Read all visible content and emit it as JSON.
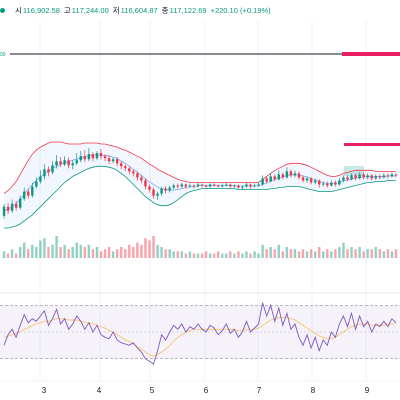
{
  "header": {
    "open_label": "시",
    "open": "116,902.58",
    "high_label": "고",
    "high": "117,244.00",
    "low_label": "저",
    "low": "116,604.87",
    "close_label": "종",
    "close": "117,122.69",
    "change": "+220.10 (+0.19%)"
  },
  "colors": {
    "up": "#089981",
    "down": "#f23645",
    "bb_upper": "#f23645",
    "bb_lower": "#089981",
    "bb_fill": "#2962ff",
    "rsi_line": "#7e57c2",
    "rsi_ma": "#f5c56b",
    "rsi_band": "#7e57c2",
    "alert_line": "#131722",
    "zone": "#e91e63"
  },
  "chart_data": {
    "type": "candlestick",
    "x_ticks": [
      "3",
      "4",
      "5",
      "6",
      "7",
      "8",
      "9"
    ],
    "price_tag": "00",
    "candles": [
      [
        -0.3,
        0.6,
        0.9,
        -0.6
      ],
      [
        0.6,
        0.2,
        1.0,
        -0.1
      ],
      [
        0.2,
        0.9,
        1.3,
        0.0
      ],
      [
        0.9,
        0.5,
        1.2,
        0.2
      ],
      [
        0.5,
        1.4,
        1.7,
        0.3
      ],
      [
        1.4,
        2.1,
        2.5,
        1.2
      ],
      [
        2.1,
        1.7,
        2.4,
        1.4
      ],
      [
        1.7,
        2.6,
        3.0,
        1.5
      ],
      [
        2.6,
        3.1,
        3.5,
        2.4
      ],
      [
        3.1,
        3.6,
        4.2,
        2.9
      ],
      [
        3.6,
        4.3,
        4.8,
        3.3
      ],
      [
        4.3,
        4.0,
        4.6,
        3.6
      ],
      [
        4.0,
        4.7,
        5.1,
        3.8
      ],
      [
        4.7,
        5.1,
        5.7,
        4.4
      ],
      [
        5.1,
        4.8,
        5.5,
        4.5
      ],
      [
        4.8,
        5.2,
        5.6,
        4.6
      ],
      [
        5.2,
        4.7,
        5.5,
        4.4
      ],
      [
        4.7,
        4.9,
        5.2,
        4.3
      ],
      [
        4.9,
        5.2,
        5.9,
        4.7
      ],
      [
        5.2,
        5.6,
        6.1,
        5.0
      ],
      [
        5.6,
        5.3,
        6.2,
        5.0
      ],
      [
        5.3,
        5.8,
        6.4,
        5.1
      ],
      [
        5.8,
        5.4,
        6.0,
        5.1
      ],
      [
        5.4,
        5.9,
        6.1,
        5.2
      ],
      [
        5.9,
        5.6,
        6.3,
        5.3
      ],
      [
        5.6,
        5.4,
        5.8,
        5.1
      ],
      [
        5.4,
        5.1,
        5.7,
        4.8
      ],
      [
        5.1,
        5.3,
        5.5,
        4.9
      ],
      [
        5.3,
        4.9,
        5.5,
        4.6
      ],
      [
        4.9,
        4.6,
        5.1,
        4.3
      ],
      [
        4.6,
        4.4,
        4.8,
        4.1
      ],
      [
        4.4,
        4.1,
        4.6,
        3.8
      ],
      [
        4.1,
        3.9,
        4.3,
        3.6
      ],
      [
        3.9,
        3.5,
        4.1,
        3.2
      ],
      [
        3.5,
        3.2,
        3.7,
        2.9
      ],
      [
        3.2,
        2.6,
        3.4,
        2.3
      ],
      [
        2.6,
        2.3,
        2.8,
        2.0
      ],
      [
        2.3,
        1.7,
        2.5,
        1.4
      ],
      [
        1.7,
        1.9,
        2.1,
        1.3
      ],
      [
        1.9,
        2.4,
        2.6,
        1.7
      ],
      [
        2.4,
        2.2,
        2.6,
        1.9
      ],
      [
        2.2,
        2.5,
        2.7,
        2.0
      ],
      [
        2.5,
        2.7,
        2.9,
        2.3
      ],
      [
        2.7,
        2.6,
        2.9,
        2.4
      ],
      [
        2.6,
        2.8,
        3.0,
        2.5
      ],
      [
        2.8,
        2.6,
        2.9,
        2.4
      ],
      [
        2.6,
        2.7,
        2.9,
        2.5
      ],
      [
        2.7,
        2.6,
        2.8,
        2.4
      ],
      [
        2.6,
        2.8,
        3.0,
        2.5
      ],
      [
        2.8,
        2.7,
        2.9,
        2.5
      ],
      [
        2.7,
        2.6,
        2.8,
        2.5
      ],
      [
        2.6,
        2.8,
        2.9,
        2.5
      ],
      [
        2.8,
        2.7,
        2.9,
        2.6
      ],
      [
        2.7,
        2.6,
        2.8,
        2.5
      ],
      [
        2.6,
        2.7,
        2.9,
        2.5
      ],
      [
        2.7,
        2.8,
        3.0,
        2.6
      ],
      [
        2.8,
        2.6,
        2.9,
        2.5
      ],
      [
        2.6,
        2.7,
        2.8,
        2.5
      ],
      [
        2.7,
        2.5,
        2.8,
        2.4
      ],
      [
        2.5,
        2.6,
        2.7,
        2.3
      ],
      [
        2.6,
        2.8,
        3.0,
        2.5
      ],
      [
        2.8,
        2.6,
        2.9,
        2.4
      ],
      [
        2.6,
        2.7,
        2.9,
        2.5
      ],
      [
        2.7,
        2.8,
        3.0,
        2.6
      ],
      [
        2.8,
        3.4,
        3.7,
        2.7
      ],
      [
        3.4,
        3.1,
        3.6,
        2.9
      ],
      [
        3.1,
        3.6,
        3.9,
        3.0
      ],
      [
        3.6,
        3.3,
        3.8,
        3.1
      ],
      [
        3.3,
        3.8,
        4.2,
        3.2
      ],
      [
        3.8,
        3.5,
        4.0,
        3.3
      ],
      [
        3.5,
        4.1,
        4.5,
        3.4
      ],
      [
        4.1,
        3.7,
        4.3,
        3.5
      ],
      [
        3.7,
        3.9,
        4.2,
        3.5
      ],
      [
        3.9,
        3.5,
        4.1,
        3.3
      ],
      [
        3.5,
        3.2,
        3.7,
        3.0
      ],
      [
        3.2,
        3.4,
        3.6,
        3.0
      ],
      [
        3.4,
        3.0,
        3.5,
        2.8
      ],
      [
        3.0,
        3.2,
        3.4,
        2.8
      ],
      [
        3.2,
        2.8,
        3.3,
        2.5
      ],
      [
        2.8,
        2.9,
        3.1,
        2.6
      ],
      [
        2.9,
        2.7,
        3.1,
        2.5
      ],
      [
        2.7,
        3.0,
        3.2,
        2.6
      ],
      [
        3.0,
        2.8,
        3.2,
        2.6
      ],
      [
        2.8,
        3.2,
        3.4,
        2.7
      ],
      [
        3.2,
        3.5,
        3.7,
        3.0
      ],
      [
        3.5,
        3.3,
        3.7,
        3.1
      ],
      [
        3.3,
        3.7,
        3.9,
        3.2
      ],
      [
        3.7,
        3.4,
        3.9,
        3.2
      ],
      [
        3.4,
        3.8,
        4.0,
        3.3
      ],
      [
        3.8,
        3.5,
        4.0,
        3.3
      ],
      [
        3.5,
        3.7,
        3.9,
        3.3
      ],
      [
        3.7,
        3.4,
        3.8,
        3.2
      ],
      [
        3.4,
        3.6,
        3.8,
        3.3
      ],
      [
        3.6,
        3.5,
        3.8,
        3.3
      ],
      [
        3.5,
        3.7,
        3.9,
        3.4
      ],
      [
        3.7,
        3.6,
        3.9,
        3.4
      ],
      [
        3.6,
        3.8,
        4.0,
        3.5
      ],
      [
        3.8,
        3.7,
        3.9,
        3.5
      ]
    ],
    "bb_upper": [
      1.9,
      2.2,
      2.6,
      3.1,
      3.8,
      4.5,
      5.2,
      5.8,
      6.2,
      6.5,
      6.7,
      6.9,
      7.0,
      7.0,
      7.0,
      6.9,
      6.8,
      6.8,
      6.8,
      6.8,
      6.9,
      6.9,
      6.9,
      6.9,
      6.8,
      6.8,
      6.7,
      6.6,
      6.5,
      6.3,
      6.2,
      6.0,
      5.8,
      5.6,
      5.4,
      5.1,
      4.8,
      4.6,
      4.3,
      4.1,
      3.9,
      3.7,
      3.5,
      3.3,
      3.2,
      3.1,
      3.0,
      3.0,
      3.0,
      3.0,
      3.0,
      3.0,
      3.0,
      3.0,
      3.0,
      3.0,
      3.0,
      3.0,
      3.0,
      3.0,
      3.0,
      3.0,
      3.0,
      3.0,
      3.3,
      3.6,
      3.9,
      4.2,
      4.4,
      4.6,
      4.8,
      4.9,
      4.9,
      4.9,
      4.8,
      4.7,
      4.5,
      4.3,
      4.1,
      3.9,
      3.7,
      3.6,
      3.6,
      3.7,
      3.9,
      4.0,
      4.1,
      4.2,
      4.2,
      4.2,
      4.2,
      4.2,
      4.1,
      4.1,
      4.1,
      4.1,
      4.1,
      4.1
    ],
    "bb_lower": [
      -1.5,
      -1.5,
      -1.4,
      -1.3,
      -1.1,
      -0.8,
      -0.5,
      -0.2,
      0.2,
      0.6,
      1.0,
      1.4,
      1.8,
      2.2,
      2.6,
      3.0,
      3.3,
      3.6,
      3.8,
      4.0,
      4.2,
      4.4,
      4.5,
      4.6,
      4.6,
      4.6,
      4.5,
      4.4,
      4.2,
      3.9,
      3.6,
      3.2,
      2.8,
      2.4,
      2.0,
      1.6,
      1.3,
      1.0,
      0.8,
      0.7,
      0.7,
      0.8,
      1.0,
      1.3,
      1.6,
      1.9,
      2.1,
      2.2,
      2.3,
      2.4,
      2.4,
      2.4,
      2.4,
      2.4,
      2.4,
      2.4,
      2.4,
      2.4,
      2.3,
      2.3,
      2.3,
      2.3,
      2.3,
      2.3,
      2.3,
      2.3,
      2.4,
      2.4,
      2.5,
      2.5,
      2.6,
      2.6,
      2.6,
      2.6,
      2.5,
      2.4,
      2.3,
      2.2,
      2.1,
      2.1,
      2.1,
      2.1,
      2.2,
      2.3,
      2.4,
      2.5,
      2.6,
      2.7,
      2.8,
      2.9,
      3.0,
      3.0,
      3.1,
      3.1,
      3.1,
      3.2,
      3.2,
      3.2
    ],
    "volume": [
      3,
      2,
      4,
      2,
      5,
      7,
      4,
      6,
      5,
      8,
      9,
      5,
      6,
      10,
      5,
      6,
      4,
      5,
      7,
      6,
      5,
      6,
      4,
      5,
      3,
      4,
      5,
      3,
      4,
      5,
      4,
      6,
      5,
      7,
      6,
      9,
      8,
      10,
      6,
      5,
      4,
      4,
      3,
      3,
      3,
      2,
      3,
      2,
      2,
      2,
      3,
      2,
      2,
      3,
      2,
      2,
      3,
      2,
      3,
      2,
      3,
      2,
      3,
      2,
      6,
      4,
      5,
      4,
      6,
      3,
      5,
      4,
      4,
      3,
      4,
      3,
      4,
      3,
      5,
      3,
      4,
      3,
      4,
      5,
      7,
      4,
      5,
      4,
      5,
      3,
      4,
      4,
      5,
      4,
      3,
      4,
      3,
      4
    ],
    "rsi": [
      40,
      48,
      52,
      46,
      55,
      63,
      57,
      60,
      58,
      62,
      66,
      55,
      60,
      67,
      56,
      60,
      52,
      56,
      62,
      58,
      52,
      57,
      50,
      55,
      48,
      46,
      45,
      50,
      44,
      42,
      41,
      40,
      42,
      38,
      35,
      30,
      28,
      26,
      36,
      48,
      44,
      50,
      55,
      52,
      56,
      50,
      54,
      52,
      56,
      52,
      50,
      55,
      53,
      48,
      51,
      56,
      49,
      52,
      46,
      50,
      58,
      50,
      53,
      56,
      72,
      62,
      70,
      58,
      68,
      55,
      64,
      52,
      56,
      46,
      40,
      48,
      38,
      46,
      36,
      44,
      40,
      50,
      46,
      56,
      62,
      54,
      64,
      52,
      62,
      54,
      58,
      50,
      56,
      54,
      58,
      54,
      60,
      57
    ],
    "rsi_ma": [
      46,
      47,
      48,
      49,
      50,
      52,
      53,
      55,
      56,
      57,
      58,
      58,
      59,
      60,
      60,
      60,
      59,
      59,
      59,
      58,
      57,
      57,
      56,
      55,
      54,
      53,
      51,
      50,
      48,
      46,
      44,
      43,
      41,
      39,
      37,
      35,
      33,
      32,
      33,
      35,
      37,
      40,
      43,
      46,
      48,
      50,
      51,
      52,
      52,
      52,
      52,
      52,
      52,
      52,
      52,
      52,
      52,
      52,
      51,
      51,
      52,
      52,
      52,
      53,
      55,
      57,
      59,
      60,
      61,
      61,
      61,
      60,
      59,
      57,
      55,
      53,
      51,
      49,
      47,
      46,
      45,
      45,
      46,
      48,
      50,
      52,
      54,
      55,
      56,
      56,
      56,
      55,
      55,
      55,
      55,
      56,
      56,
      57
    ]
  }
}
